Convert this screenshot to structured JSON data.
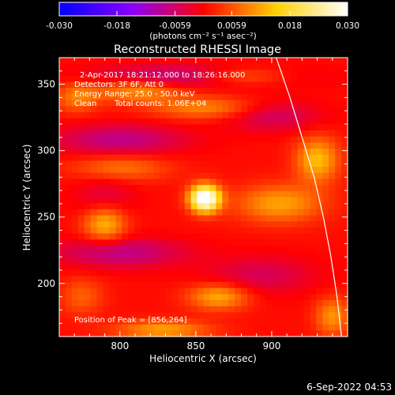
{
  "colorbar": {
    "tick_labels": [
      "-0.030",
      "-0.018",
      "-0.0059",
      "0.0059",
      "0.018",
      "0.030"
    ],
    "range": [
      -0.03,
      0.03
    ],
    "unit_label": "(photons cm⁻² s⁻¹ asec⁻²)",
    "colors": [
      "#0000ff",
      "#8a00ff",
      "#ff0000",
      "#ffd000",
      "#ffffff"
    ]
  },
  "title": "Reconstructed RHESSI Image",
  "annotations": {
    "time_range": "2-Apr-2017 18:21:12.000 to 18:26:16.000",
    "detectors": "Detectors: 3F 6F, Att 0",
    "energy": "Energy Range: 25.0 - 50.0 keV",
    "method": "Clean",
    "counts": "Total counts: 1.06E+04",
    "peak": "Position of Peak = [856,264]"
  },
  "footer_date": "6-Sep-2022 04:53",
  "chart_data": {
    "type": "heatmap",
    "title": "Reconstructed RHESSI Image",
    "xlabel": "Heliocentric X (arcsec)",
    "ylabel": "Heliocentric Y (arcsec)",
    "xlim": [
      760,
      950
    ],
    "ylim": [
      160,
      370
    ],
    "x_ticks": [
      800,
      850,
      900
    ],
    "y_ticks": [
      200,
      250,
      300,
      350
    ],
    "peak": [
      856,
      264
    ],
    "limb": [
      [
        903,
        370
      ],
      [
        912,
        340
      ],
      [
        920,
        310
      ],
      [
        928,
        280
      ],
      [
        934,
        250
      ],
      [
        939,
        220
      ],
      [
        943,
        190
      ],
      [
        946,
        160
      ]
    ],
    "color_range": [
      -0.03,
      0.03
    ],
    "sources": [
      {
        "x": 856,
        "y": 264,
        "sx": 7,
        "sy": 7,
        "amp": 0.034
      },
      {
        "x": 800,
        "y": 308,
        "sx": 30,
        "sy": 8,
        "amp": -0.009
      },
      {
        "x": 800,
        "y": 223,
        "sx": 30,
        "sy": 8,
        "amp": -0.009
      },
      {
        "x": 850,
        "y": 356,
        "sx": 45,
        "sy": 6,
        "amp": -0.01
      },
      {
        "x": 900,
        "y": 326,
        "sx": 22,
        "sy": 8,
        "amp": -0.007
      },
      {
        "x": 790,
        "y": 265,
        "sx": 14,
        "sy": 12,
        "amp": -0.005
      },
      {
        "x": 893,
        "y": 206,
        "sx": 25,
        "sy": 10,
        "amp": -0.006
      },
      {
        "x": 812,
        "y": 345,
        "sx": 20,
        "sy": 6,
        "amp": 0.01
      },
      {
        "x": 880,
        "y": 356,
        "sx": 22,
        "sy": 5,
        "amp": 0.011
      },
      {
        "x": 857,
        "y": 332,
        "sx": 25,
        "sy": 6,
        "amp": 0.009
      },
      {
        "x": 790,
        "y": 245,
        "sx": 10,
        "sy": 10,
        "amp": 0.013
      },
      {
        "x": 800,
        "y": 287,
        "sx": 22,
        "sy": 7,
        "amp": 0.008
      },
      {
        "x": 905,
        "y": 260,
        "sx": 20,
        "sy": 10,
        "amp": 0.011
      },
      {
        "x": 930,
        "y": 293,
        "sx": 10,
        "sy": 12,
        "amp": 0.013
      },
      {
        "x": 865,
        "y": 190,
        "sx": 14,
        "sy": 7,
        "amp": 0.012
      },
      {
        "x": 828,
        "y": 165,
        "sx": 22,
        "sy": 5,
        "amp": 0.011
      },
      {
        "x": 772,
        "y": 340,
        "sx": 10,
        "sy": 8,
        "amp": 0.008
      },
      {
        "x": 940,
        "y": 175,
        "sx": 8,
        "sy": 10,
        "amp": 0.01
      },
      {
        "x": 775,
        "y": 190,
        "sx": 10,
        "sy": 10,
        "amp": 0.006
      }
    ]
  }
}
